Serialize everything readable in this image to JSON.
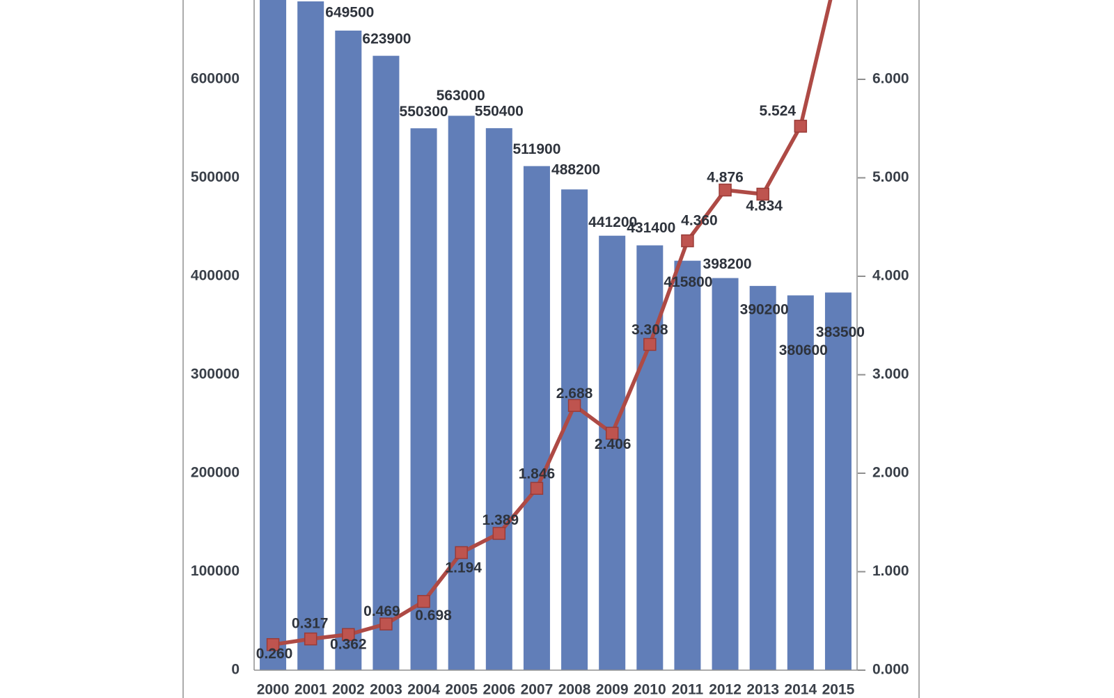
{
  "chart_data": {
    "type": "bar",
    "subtype": "combo-bar-line-dual-axis",
    "title": "",
    "legend": "none",
    "grid": "off",
    "categories": [
      "2000",
      "2001",
      "2002",
      "2003",
      "2004",
      "2005",
      "2006",
      "2007",
      "2008",
      "2009",
      "2010",
      "2011",
      "2012",
      "2013",
      "2014",
      "2015"
    ],
    "series": [
      {
        "name": "bars-left-axis",
        "type": "bar",
        "axis": "left",
        "color": "#617EB8",
        "values": [
          null,
          null,
          649500,
          623900,
          550300,
          563000,
          550400,
          511900,
          488200,
          441200,
          431400,
          415800,
          398200,
          390200,
          380600,
          383500
        ],
        "data_labels": [
          "",
          "",
          "649500",
          "623900",
          "550300",
          "563000",
          "550400",
          "511900",
          "488200",
          "441200",
          "431400",
          "415800",
          "398200",
          "390200",
          "380600",
          "383500"
        ],
        "clipped_offscreen_top_categories": [
          "2000",
          "2001"
        ]
      },
      {
        "name": "line-right-axis",
        "type": "line",
        "axis": "right",
        "color": "#AE4A45",
        "marker": "square",
        "marker_fill": "#BE544F",
        "marker_stroke": "#9A3B37",
        "values": [
          0.26,
          0.317,
          0.362,
          0.469,
          0.698,
          1.194,
          1.389,
          1.846,
          2.688,
          2.406,
          3.308,
          4.36,
          4.876,
          4.834,
          5.524,
          null
        ],
        "data_labels": [
          "0.260",
          "0.317",
          "0.362",
          "0.469",
          "0.698",
          "1.194",
          "1.389",
          "1.846",
          "2.688",
          "2.406",
          "3.308",
          "4.360",
          "4.876",
          "4.834",
          "5.524",
          ""
        ],
        "clipped_offscreen_top_categories": [
          "2015"
        ]
      }
    ],
    "left_axis": {
      "tick_labels": [
        "0",
        "100000",
        "200000",
        "300000",
        "400000",
        "500000",
        "600000"
      ],
      "tick_step": 100000,
      "visible_min": 0,
      "visible_max_shown": 600000
    },
    "right_axis": {
      "tick_labels": [
        "0.000",
        "1.000",
        "2.000",
        "3.000",
        "4.000",
        "5.000",
        "6.000"
      ],
      "tick_step": 1.0,
      "visible_min": 0.0,
      "visible_max_shown": 6.0
    },
    "x_axis": {
      "tick_labels": [
        "2000",
        "2001",
        "2002",
        "2003",
        "2004",
        "2005",
        "2006",
        "2007",
        "2008",
        "2009",
        "2010",
        "2011",
        "2012",
        "2013",
        "2014",
        "2015"
      ]
    },
    "colors": {
      "background": "#ffffff",
      "bar_fill": "#617EB8",
      "line_stroke": "#AE4A45",
      "marker_fill": "#BE544F",
      "marker_stroke": "#9A3B37",
      "axis_line": "#8F8F8F",
      "chart_frame": "#969696",
      "data_label_text": "#2E333C",
      "axis_label_text": "#3A4049"
    }
  }
}
